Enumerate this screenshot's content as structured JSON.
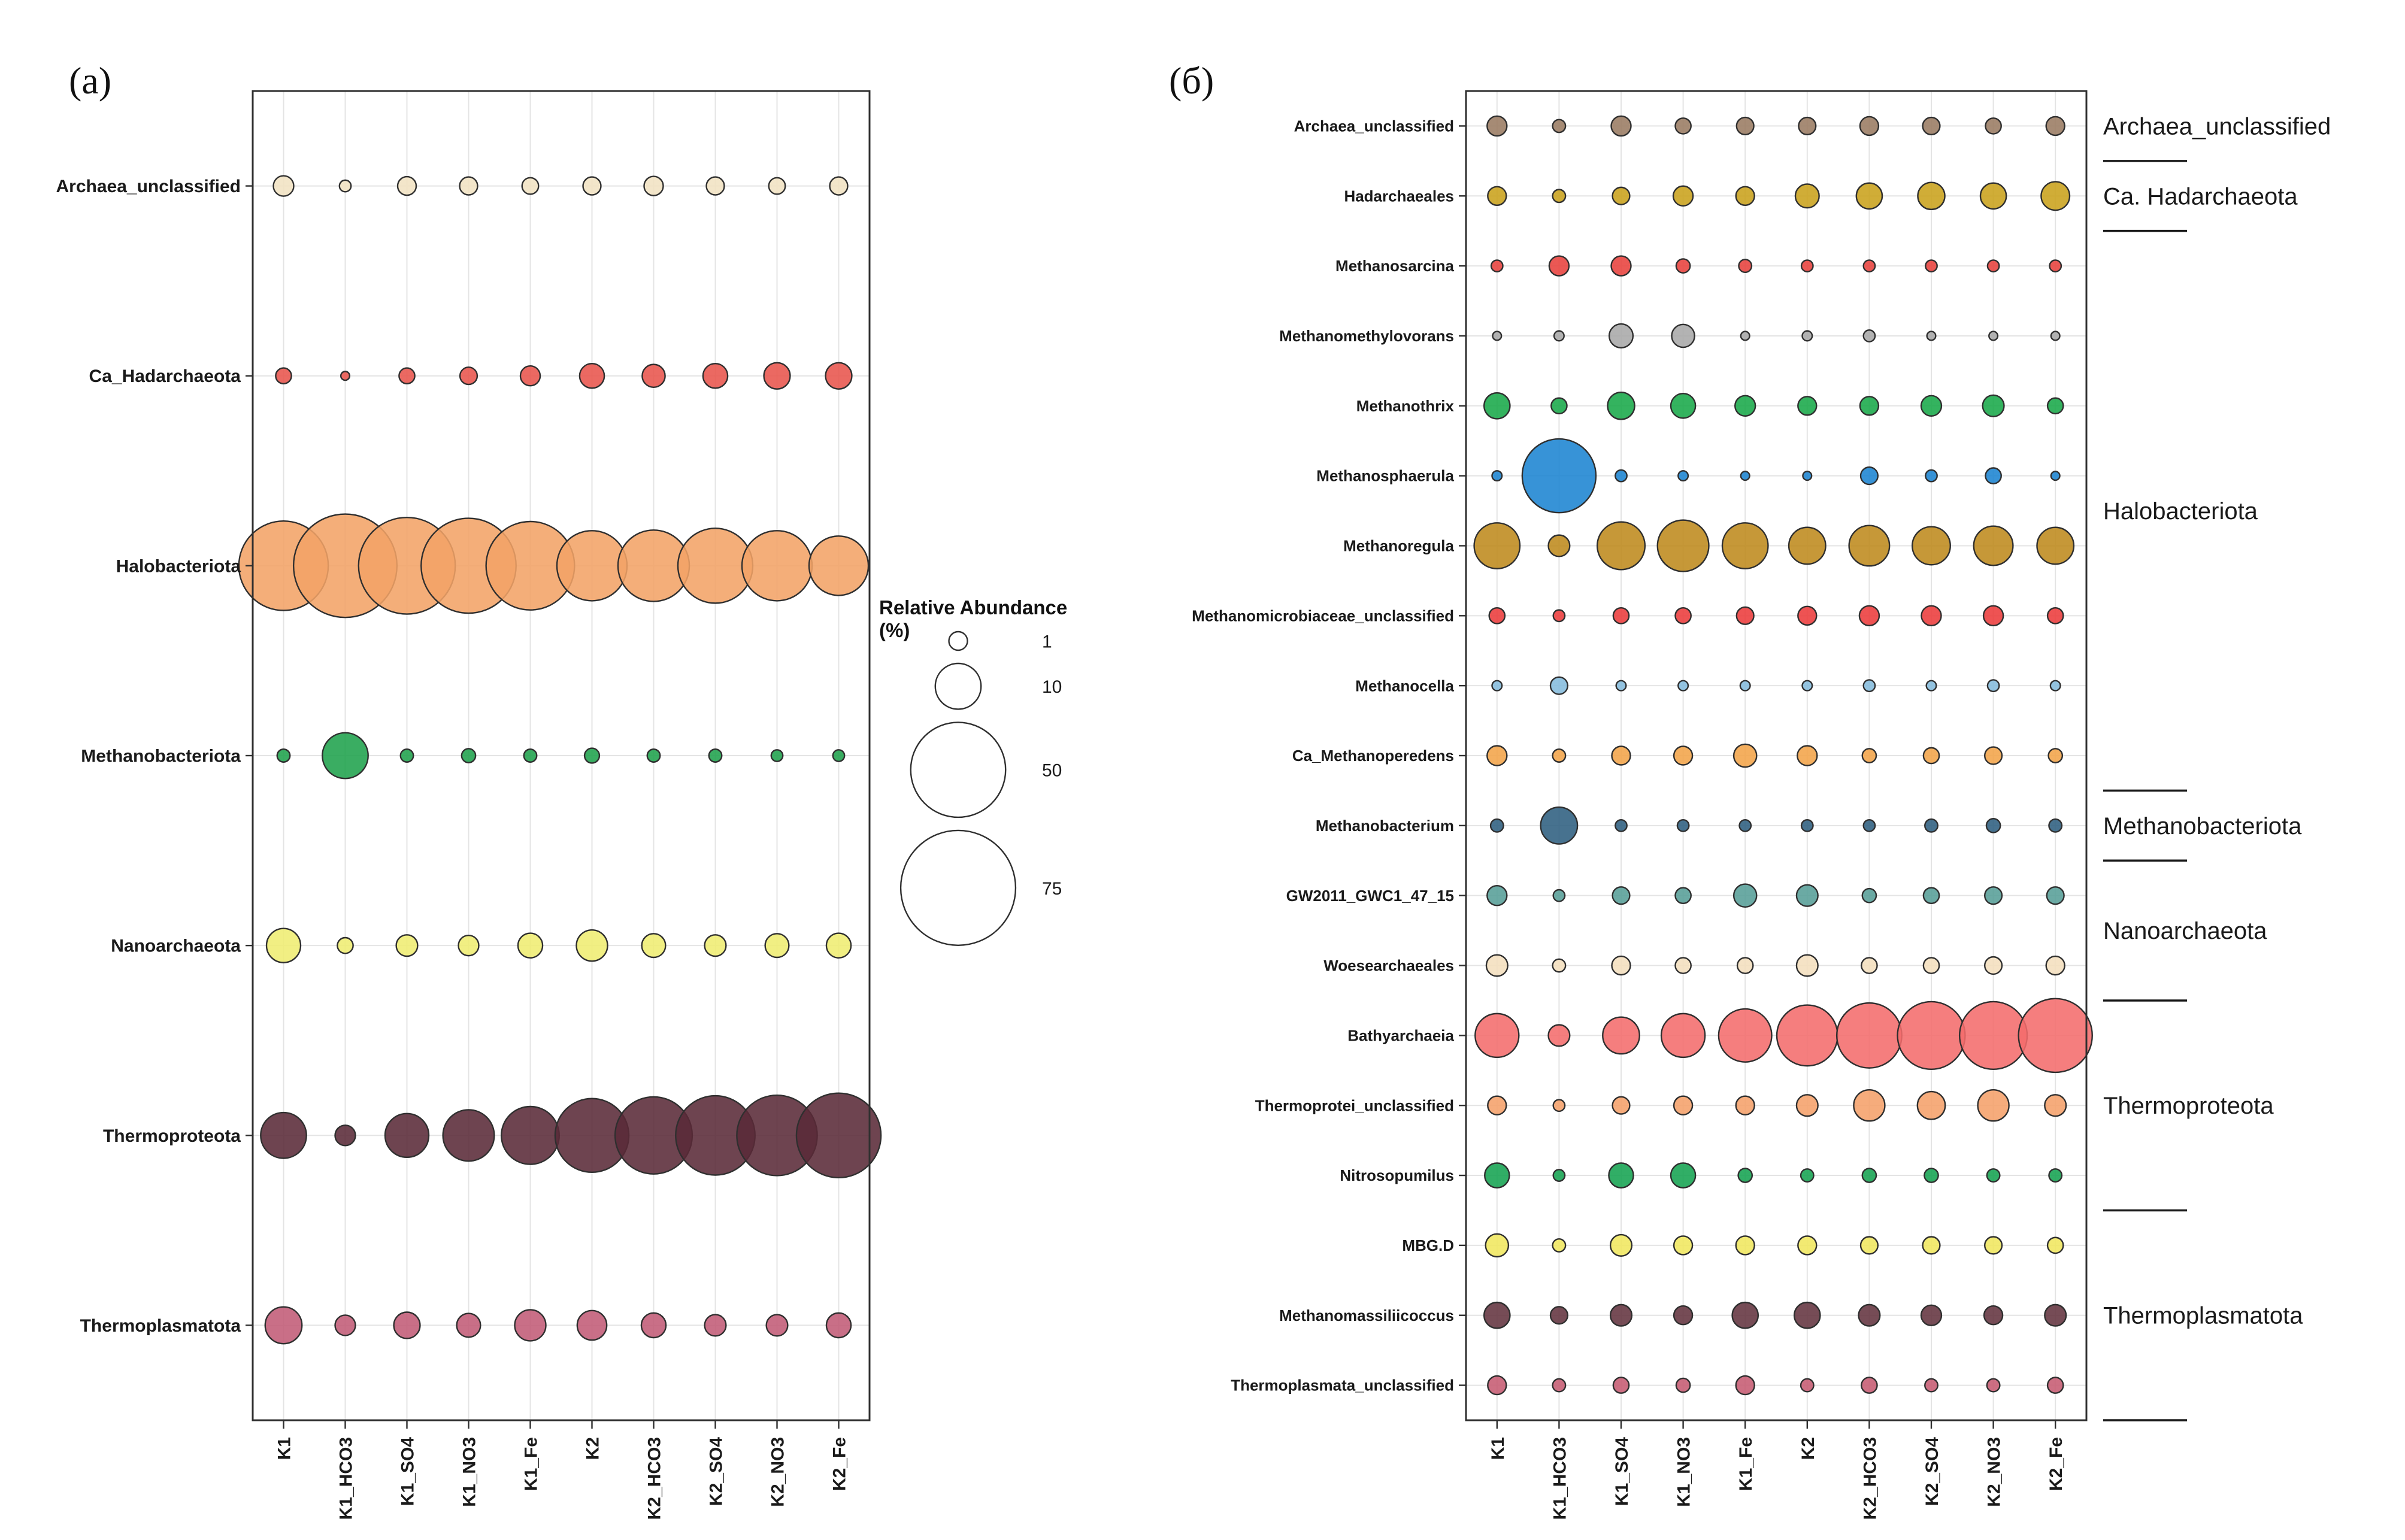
{
  "chart_data": [
    {
      "type": "scatter",
      "subtype": "bubble",
      "panel": "(а)",
      "size_unit": "relative abundance percent",
      "grid": true,
      "x_categories": [
        "K1",
        "K1_HCO3",
        "K1_SO4",
        "K1_NO3",
        "K1_Fe",
        "K2",
        "K2_HCO3",
        "K2_SO4",
        "K2_NO3",
        "K2_Fe"
      ],
      "legend": {
        "title": "Relative Abundance (%)",
        "sizes": [
          1,
          10,
          50,
          75
        ],
        "position": "right"
      },
      "series": [
        {
          "name": "Archaea_unclassified",
          "color": "#F1E2C3",
          "values": [
            1.3,
            0.2,
            1.0,
            0.9,
            0.7,
            0.9,
            1.1,
            0.9,
            0.7,
            0.9
          ]
        },
        {
          "name": "Ca_Hadarchaeota",
          "color": "#E8544C",
          "values": [
            0.6,
            0.05,
            0.6,
            0.8,
            1.2,
            2.2,
            1.8,
            2.2,
            2.6,
            2.6
          ]
        },
        {
          "name": "Halobacteriota",
          "color": "#F2A366",
          "values": [
            44,
            60,
            52,
            50,
            43,
            26,
            27,
            30,
            26,
            18
          ]
        },
        {
          "name": "Methanobacteriota",
          "color": "#1FA24C",
          "values": [
            0.3,
            10,
            0.3,
            0.4,
            0.3,
            0.5,
            0.3,
            0.3,
            0.2,
            0.2
          ]
        },
        {
          "name": "Nanoarchaeota",
          "color": "#EFED72",
          "values": [
            5,
            0.6,
            1.5,
            1.3,
            2.2,
            4,
            2,
            1.5,
            2,
            2.2
          ]
        },
        {
          "name": "Thermoproteota",
          "color": "#5A2A38",
          "values": [
            10,
            1.3,
            9,
            13,
            17,
            29,
            32,
            34,
            35,
            39
          ]
        },
        {
          "name": "Thermoplasmatota",
          "color": "#C25B76",
          "values": [
            6,
            1.3,
            2.6,
            2,
            4,
            3.5,
            2.2,
            1.5,
            1.5,
            2.2
          ]
        }
      ]
    },
    {
      "type": "scatter",
      "subtype": "bubble",
      "panel": "(б)",
      "size_unit": "relative abundance percent",
      "grid": true,
      "x_categories": [
        "K1",
        "K1_HCO3",
        "K1_SO4",
        "K1_NO3",
        "K1_Fe",
        "K2",
        "K2_HCO3",
        "K2_SO4",
        "K2_NO3",
        "K2_Fe"
      ],
      "series": [
        {
          "name": "Archaea_unclassified",
          "color": "#9A7B62",
          "values": [
            1.2,
            0.3,
            1.2,
            0.6,
            0.8,
            0.8,
            1.0,
            0.8,
            0.6,
            1.0
          ]
        },
        {
          "name": "Hadarchaeales",
          "color": "#C9A21B",
          "values": [
            1.0,
            0.3,
            0.8,
            1.2,
            1.0,
            2.0,
            2.5,
            2.8,
            2.5,
            3.2
          ]
        },
        {
          "name": "Methanosarcina",
          "color": "#E8413C",
          "values": [
            0.2,
            1.2,
            1.2,
            0.4,
            0.3,
            0.2,
            0.2,
            0.2,
            0.2,
            0.2
          ]
        },
        {
          "name": "Methanomethylovorans",
          "color": "#A8A8A8",
          "values": [
            0.05,
            0.1,
            2.0,
            1.8,
            0.05,
            0.1,
            0.2,
            0.05,
            0.05,
            0.05
          ]
        },
        {
          "name": "Methanothrix",
          "color": "#18A849",
          "values": [
            2.5,
            0.6,
            2.8,
            2.2,
            1.3,
            1.0,
            1.0,
            1.3,
            1.5,
            0.6
          ]
        },
        {
          "name": "Methanosphaerula",
          "color": "#1B84D1",
          "values": [
            0.1,
            29,
            0.2,
            0.1,
            0.05,
            0.05,
            0.8,
            0.2,
            0.6,
            0.05
          ]
        },
        {
          "name": "Methanoregula",
          "color": "#BE8A1C",
          "values": [
            10,
            1.5,
            11,
            13,
            10,
            6,
            7.5,
            6.5,
            7,
            6
          ]
        },
        {
          "name": "Methanomicrobiaceae_unclassified",
          "color": "#EC3B3B",
          "values": [
            0.6,
            0.2,
            0.6,
            0.6,
            0.8,
            1.0,
            1.2,
            1.2,
            1.2,
            0.6
          ]
        },
        {
          "name": "Methanocella",
          "color": "#85BCDD",
          "values": [
            0.1,
            0.8,
            0.1,
            0.1,
            0.1,
            0.1,
            0.2,
            0.1,
            0.2,
            0.1
          ]
        },
        {
          "name": "Ca_Methanoperedens",
          "color": "#F2A449",
          "values": [
            1.2,
            0.3,
            1.0,
            1.0,
            1.8,
            1.2,
            0.4,
            0.6,
            0.8,
            0.4
          ]
        },
        {
          "name": "Methanobacterium",
          "color": "#2E5F80",
          "values": [
            0.3,
            6,
            0.2,
            0.2,
            0.2,
            0.2,
            0.2,
            0.3,
            0.4,
            0.3
          ]
        },
        {
          "name": "GW2011_GWC1_47_15",
          "color": "#579E97",
          "values": [
            1.2,
            0.2,
            0.8,
            0.6,
            1.8,
            1.5,
            0.4,
            0.6,
            0.8,
            0.8
          ]
        },
        {
          "name": "Woesearchaeales",
          "color": "#F4DFBE",
          "values": [
            1.5,
            0.3,
            1.0,
            0.6,
            0.6,
            1.5,
            0.6,
            0.6,
            0.8,
            1.0
          ]
        },
        {
          "name": "Bathyarchaeia",
          "color": "#F46C6C",
          "values": [
            9,
            1.5,
            6,
            9,
            14,
            19,
            22,
            24,
            24,
            29
          ]
        },
        {
          "name": "Thermoprotei_unclassified",
          "color": "#F5A06A",
          "values": [
            1.0,
            0.2,
            0.8,
            1.0,
            1.0,
            1.5,
            4,
            3,
            4,
            1.5
          ]
        },
        {
          "name": "Nitrosopumilus",
          "color": "#14A351",
          "values": [
            2.2,
            0.2,
            2.2,
            2.2,
            0.4,
            0.3,
            0.4,
            0.4,
            0.3,
            0.3
          ]
        },
        {
          "name": "MBG.D",
          "color": "#F0E75F",
          "values": [
            1.8,
            0.3,
            1.5,
            1.0,
            1.0,
            1.0,
            0.8,
            0.8,
            0.8,
            0.6
          ]
        },
        {
          "name": "Methanomassiliicoccus",
          "color": "#63333F",
          "values": [
            2.5,
            0.8,
            1.5,
            1.0,
            2.5,
            2.5,
            1.5,
            1.3,
            1.0,
            1.5
          ]
        },
        {
          "name": "Thermoplasmata_unclassified",
          "color": "#C65B72",
          "values": [
            1.0,
            0.3,
            0.6,
            0.4,
            1.0,
            0.3,
            0.6,
            0.3,
            0.3,
            0.6
          ]
        }
      ],
      "right_groups": [
        {
          "label": "Archaea_unclassified",
          "from": 0,
          "to": 0
        },
        {
          "label": "Ca. Hadarchaeota",
          "from": 1,
          "to": 1
        },
        {
          "label": "Halobacteriota",
          "from": 2,
          "to": 9
        },
        {
          "label": "Methanobacteriota",
          "from": 10,
          "to": 10
        },
        {
          "label": "Nanoarchaeota",
          "from": 11,
          "to": 12
        },
        {
          "label": "Thermoproteota",
          "from": 13,
          "to": 15
        },
        {
          "label": "Thermoplasmatota",
          "from": 16,
          "to": 18
        }
      ]
    }
  ]
}
